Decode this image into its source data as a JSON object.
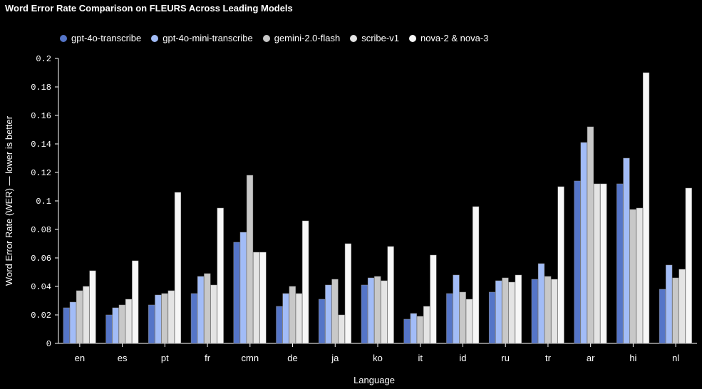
{
  "chart_data": {
    "type": "bar",
    "title": "Word Error Rate Comparison on FLEURS Across Leading Models",
    "xlabel": "Language",
    "ylabel": "Word Error Rate (WER) — lower is better",
    "ylim": [
      0,
      0.2
    ],
    "yticks": [
      "0",
      "0.02",
      "0.04",
      "0.06",
      "0.08",
      "0.1",
      "0.12",
      "0.14",
      "0.16",
      "0.18",
      "0.2"
    ],
    "legend_position": "top-left",
    "grid": false,
    "categories": [
      "en",
      "es",
      "pt",
      "fr",
      "cmn",
      "de",
      "ja",
      "ko",
      "it",
      "id",
      "ru",
      "tr",
      "ar",
      "hi",
      "nl"
    ],
    "series": [
      {
        "name": "gpt-4o-transcribe",
        "color": "#5575c8",
        "values": [
          0.025,
          0.02,
          0.027,
          0.035,
          0.071,
          0.026,
          0.031,
          0.041,
          0.017,
          0.035,
          0.036,
          0.045,
          0.114,
          0.112,
          0.038
        ]
      },
      {
        "name": "gpt-4o-mini-transcribe",
        "color": "#a2bcf7",
        "values": [
          0.029,
          0.025,
          0.034,
          0.047,
          0.078,
          0.035,
          0.041,
          0.046,
          0.021,
          0.048,
          0.044,
          0.056,
          0.141,
          0.13,
          0.055
        ]
      },
      {
        "name": "gemini-2.0-flash",
        "color": "#c8c8c8",
        "values": [
          0.037,
          0.027,
          0.035,
          0.049,
          0.118,
          0.04,
          0.045,
          0.047,
          0.019,
          0.036,
          0.046,
          0.047,
          0.152,
          0.094,
          0.046
        ]
      },
      {
        "name": "scribe-v1",
        "color": "#e4e4e4",
        "values": [
          0.04,
          0.031,
          0.037,
          0.041,
          0.064,
          0.035,
          0.02,
          0.044,
          0.026,
          0.031,
          0.043,
          0.045,
          0.112,
          0.095,
          0.052
        ]
      },
      {
        "name": "nova-2 & nova-3",
        "color": "#f7f7f7",
        "values": [
          0.051,
          0.058,
          0.106,
          0.095,
          0.064,
          0.086,
          0.07,
          0.068,
          0.062,
          0.096,
          0.048,
          0.11,
          0.112,
          0.19,
          0.109
        ]
      }
    ]
  }
}
